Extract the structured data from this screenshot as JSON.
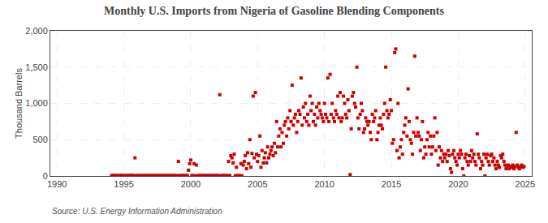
{
  "chart_data": {
    "type": "scatter",
    "title": "Monthly U.S. Imports from Nigeria of Gasoline Blending Components",
    "ylabel": "Thousand Barrels",
    "annotations": [
      "Source: U.S. Energy Information Administration"
    ],
    "color": "#cc0000",
    "marker": "square",
    "grid": true,
    "xlim": [
      1989.5,
      2025.5
    ],
    "xticks": [
      1990,
      1995,
      2000,
      2005,
      2010,
      2015,
      2020,
      2025
    ],
    "ylim": [
      0,
      2000
    ],
    "yticks": [
      0,
      500,
      {
        "value": 1000,
        "label": "1,000"
      },
      {
        "value": 1500,
        "label": "1,500"
      },
      {
        "value": 2000,
        "label": "2,000"
      }
    ],
    "x": [
      1994.08,
      1994.17,
      1994.25,
      1994.33,
      1994.42,
      1994.5,
      1994.58,
      1994.67,
      1994.75,
      1994.83,
      1994.92,
      1995.0,
      1995.08,
      1995.17,
      1995.25,
      1995.33,
      1995.42,
      1995.5,
      1995.58,
      1995.67,
      1995.75,
      1995.83,
      1995.92,
      1996.0,
      1996.08,
      1996.17,
      1996.25,
      1996.33,
      1996.42,
      1996.5,
      1996.58,
      1996.67,
      1996.75,
      1996.83,
      1996.92,
      1997.0,
      1997.08,
      1997.17,
      1997.25,
      1997.33,
      1997.42,
      1997.5,
      1997.58,
      1997.67,
      1997.75,
      1997.83,
      1997.92,
      1998.0,
      1998.08,
      1998.17,
      1998.25,
      1998.33,
      1998.42,
      1998.5,
      1998.58,
      1998.67,
      1998.75,
      1998.83,
      1998.92,
      1999.0,
      1999.08,
      1999.17,
      1999.25,
      1999.33,
      1999.42,
      1999.5,
      1999.58,
      1999.67,
      1999.75,
      1999.83,
      1999.92,
      2000.0,
      2000.08,
      2000.17,
      2000.25,
      2000.33,
      2000.42,
      2000.5,
      2000.58,
      2000.67,
      2000.75,
      2000.83,
      2000.92,
      2001.0,
      2001.08,
      2001.17,
      2001.25,
      2001.33,
      2001.42,
      2001.5,
      2001.58,
      2001.67,
      2001.75,
      2001.83,
      2001.92,
      2002.0,
      2002.08,
      2002.17,
      2002.25,
      2002.33,
      2002.42,
      2002.5,
      2002.58,
      2002.67,
      2002.75,
      2002.83,
      2002.92,
      2003.0,
      2003.08,
      2003.17,
      2003.25,
      2003.33,
      2003.42,
      2003.5,
      2003.58,
      2003.67,
      2003.75,
      2003.83,
      2003.92,
      2004.0,
      2004.08,
      2004.17,
      2004.25,
      2004.33,
      2004.42,
      2004.5,
      2004.58,
      2004.67,
      2004.75,
      2004.83,
      2004.92,
      2005.0,
      2005.08,
      2005.17,
      2005.25,
      2005.33,
      2005.42,
      2005.5,
      2005.58,
      2005.67,
      2005.75,
      2005.83,
      2005.92,
      2006.0,
      2006.08,
      2006.17,
      2006.25,
      2006.33,
      2006.42,
      2006.5,
      2006.58,
      2006.67,
      2006.75,
      2006.83,
      2006.92,
      2007.0,
      2007.08,
      2007.17,
      2007.25,
      2007.33,
      2007.42,
      2007.5,
      2007.58,
      2007.67,
      2007.75,
      2007.83,
      2007.92,
      2008.0,
      2008.08,
      2008.17,
      2008.25,
      2008.33,
      2008.42,
      2008.5,
      2008.58,
      2008.67,
      2008.75,
      2008.83,
      2008.92,
      2009.0,
      2009.08,
      2009.17,
      2009.25,
      2009.33,
      2009.42,
      2009.5,
      2009.58,
      2009.67,
      2009.75,
      2009.83,
      2009.92,
      2010.0,
      2010.08,
      2010.17,
      2010.25,
      2010.33,
      2010.42,
      2010.5,
      2010.58,
      2010.67,
      2010.75,
      2010.83,
      2010.92,
      2011.0,
      2011.08,
      2011.17,
      2011.25,
      2011.33,
      2011.42,
      2011.5,
      2011.58,
      2011.67,
      2011.75,
      2011.83,
      2011.92,
      2012.0,
      2012.08,
      2012.17,
      2012.25,
      2012.33,
      2012.42,
      2012.5,
      2012.58,
      2012.67,
      2012.75,
      2012.83,
      2012.92,
      2013.0,
      2013.08,
      2013.17,
      2013.25,
      2013.33,
      2013.42,
      2013.5,
      2013.58,
      2013.67,
      2013.75,
      2013.83,
      2013.92,
      2014.0,
      2014.08,
      2014.17,
      2014.25,
      2014.33,
      2014.42,
      2014.5,
      2014.58,
      2014.67,
      2014.75,
      2014.83,
      2014.92,
      2015.0,
      2015.08,
      2015.17,
      2015.25,
      2015.33,
      2015.42,
      2015.5,
      2015.58,
      2015.67,
      2015.75,
      2015.83,
      2015.92,
      2016.0,
      2016.08,
      2016.17,
      2016.25,
      2016.33,
      2016.42,
      2016.5,
      2016.58,
      2016.67,
      2016.75,
      2016.83,
      2016.92,
      2017.0,
      2017.08,
      2017.17,
      2017.25,
      2017.33,
      2017.42,
      2017.5,
      2017.58,
      2017.67,
      2017.75,
      2017.83,
      2017.92,
      2018.0,
      2018.08,
      2018.17,
      2018.25,
      2018.33,
      2018.42,
      2018.5,
      2018.58,
      2018.67,
      2018.75,
      2018.83,
      2018.92,
      2019.0,
      2019.08,
      2019.17,
      2019.25,
      2019.33,
      2019.42,
      2019.5,
      2019.58,
      2019.67,
      2019.75,
      2019.83,
      2019.92,
      2020.0,
      2020.08,
      2020.17,
      2020.25,
      2020.33,
      2020.42,
      2020.5,
      2020.58,
      2020.67,
      2020.75,
      2020.83,
      2020.92,
      2021.0,
      2021.08,
      2021.17,
      2021.25,
      2021.33,
      2021.42,
      2021.5,
      2021.58,
      2021.67,
      2021.75,
      2021.83,
      2021.92,
      2022.0,
      2022.08,
      2022.17,
      2022.25,
      2022.33,
      2022.42,
      2022.5,
      2022.58,
      2022.67,
      2022.75,
      2022.83,
      2022.92,
      2023.0,
      2023.08,
      2023.17,
      2023.25,
      2023.33,
      2023.42,
      2023.5,
      2023.58,
      2023.67,
      2023.75,
      2023.83,
      2023.92,
      2024.0,
      2024.08,
      2024.17,
      2024.25,
      2024.33,
      2024.42,
      2024.5,
      2024.58,
      2024.67,
      2024.75,
      2024.83,
      2024.92
    ],
    "values": [
      5,
      3,
      8,
      4,
      2,
      6,
      3,
      5,
      4,
      7,
      3,
      5,
      2,
      4,
      6,
      3,
      5,
      8,
      4,
      7,
      3,
      250,
      5,
      3,
      6,
      4,
      3,
      5,
      2,
      4,
      3,
      6,
      5,
      4,
      3,
      5,
      4,
      3,
      6,
      5,
      4,
      3,
      5,
      4,
      3,
      6,
      4,
      3,
      5,
      4,
      3,
      6,
      4,
      3,
      5,
      4,
      3,
      6,
      4,
      3,
      200,
      5,
      4,
      3,
      6,
      4,
      3,
      5,
      4,
      80,
      170,
      220,
      5,
      4,
      170,
      3,
      150,
      4,
      3,
      5,
      4,
      3,
      6,
      4,
      3,
      5,
      4,
      3,
      6,
      4,
      3,
      5,
      4,
      3,
      6,
      4,
      3,
      1120,
      4,
      3,
      6,
      4,
      3,
      5,
      4,
      200,
      6,
      280,
      250,
      180,
      300,
      5,
      120,
      3,
      5,
      4,
      170,
      3,
      150,
      200,
      280,
      100,
      320,
      170,
      500,
      120,
      310,
      1100,
      250,
      1150,
      300,
      200,
      280,
      550,
      120,
      350,
      180,
      250,
      320,
      180,
      400,
      250,
      300,
      350,
      400,
      280,
      450,
      320,
      750,
      400,
      550,
      650,
      400,
      600,
      450,
      700,
      750,
      550,
      800,
      650,
      900,
      750,
      1250,
      700,
      800,
      850,
      600,
      750,
      900,
      850,
      1350,
      700,
      950,
      800,
      1000,
      750,
      850,
      700,
      1100,
      900,
      1000,
      750,
      850,
      700,
      950,
      800,
      1000,
      900,
      850,
      800,
      750,
      1000,
      850,
      800,
      1350,
      750,
      1400,
      850,
      1000,
      800,
      750,
      900,
      850,
      1100,
      800,
      1150,
      750,
      800,
      1100,
      1000,
      850,
      800,
      1050,
      900,
      20,
      650,
      1100,
      1150,
      1000,
      950,
      1500,
      800,
      650,
      850,
      1000,
      900,
      600,
      650,
      800,
      750,
      700,
      750,
      600,
      500,
      850,
      750,
      800,
      900,
      500,
      600,
      700,
      800,
      700,
      650,
      850,
      1000,
      1500,
      900,
      800,
      850,
      1050,
      900,
      450,
      500,
      1700,
      1750,
      350,
      1000,
      250,
      400,
      500,
      300,
      600,
      700,
      800,
      550,
      1200,
      750,
      500,
      450,
      300,
      600,
      1650,
      550,
      800,
      600,
      550,
      350,
      500,
      750,
      250,
      400,
      300,
      500,
      600,
      400,
      550,
      300,
      400,
      550,
      800,
      350,
      600,
      150,
      400,
      250,
      350,
      200,
      300,
      250,
      300,
      200,
      350,
      280,
      100,
      50,
      300,
      350,
      250,
      200,
      150,
      300,
      250,
      350,
      300,
      100,
      0,
      250,
      300,
      200,
      150,
      280,
      200,
      350,
      250,
      300,
      200,
      150,
      580,
      300,
      250,
      100,
      200,
      150,
      300,
      0,
      250,
      300,
      200,
      150,
      280,
      300,
      200,
      250,
      150,
      100,
      200,
      150,
      120,
      280,
      250,
      300,
      200,
      150,
      100,
      120,
      150,
      100,
      130,
      120,
      150,
      100,
      130,
      600,
      150,
      120,
      100,
      130,
      150,
      120,
      130
    ]
  }
}
